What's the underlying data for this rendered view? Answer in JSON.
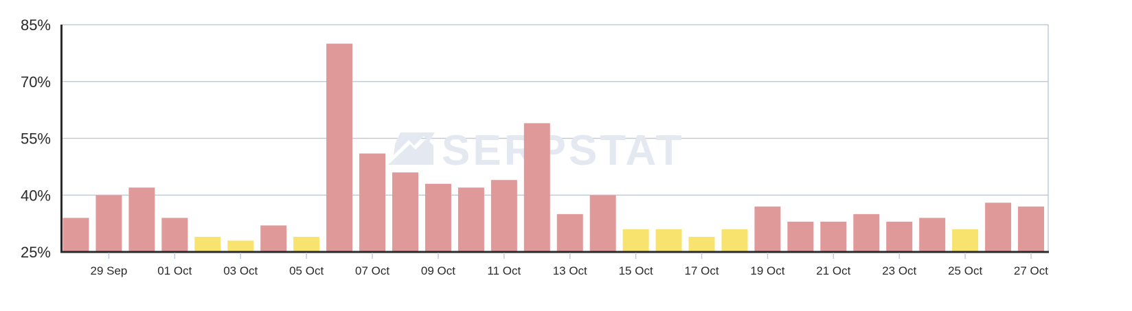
{
  "chart_data": {
    "type": "bar",
    "ylim": [
      25,
      85
    ],
    "yticks": [
      "25%",
      "40%",
      "55%",
      "70%",
      "85%"
    ],
    "ytick_values": [
      25,
      40,
      55,
      70,
      85
    ],
    "dates": [
      "28 Sep",
      "29 Sep",
      "30 Sep",
      "01 Oct",
      "02 Oct",
      "03 Oct",
      "04 Oct",
      "05 Oct",
      "06 Oct",
      "07 Oct",
      "08 Oct",
      "09 Oct",
      "10 Oct",
      "11 Oct",
      "12 Oct",
      "13 Oct",
      "14 Oct",
      "15 Oct",
      "16 Oct",
      "17 Oct",
      "18 Oct",
      "19 Oct",
      "20 Oct",
      "21 Oct",
      "22 Oct",
      "23 Oct",
      "24 Oct",
      "25 Oct",
      "26 Oct",
      "27 Oct"
    ],
    "values": [
      34,
      40,
      42,
      34,
      29,
      28,
      32,
      29,
      80,
      51,
      46,
      43,
      42,
      44,
      59,
      35,
      40,
      31,
      31,
      29,
      31,
      37,
      33,
      33,
      35,
      33,
      34,
      31,
      38,
      37
    ],
    "bar_colors": [
      "red",
      "red",
      "red",
      "red",
      "yellow",
      "yellow",
      "red",
      "yellow",
      "red",
      "red",
      "red",
      "red",
      "red",
      "red",
      "red",
      "red",
      "red",
      "yellow",
      "yellow",
      "yellow",
      "yellow",
      "red",
      "red",
      "red",
      "red",
      "red",
      "red",
      "yellow",
      "red",
      "red"
    ],
    "xtick_labels": [
      "29 Sep",
      "01 Oct",
      "03 Oct",
      "05 Oct",
      "07 Oct",
      "09 Oct",
      "11 Oct",
      "13 Oct",
      "15 Oct",
      "17 Oct",
      "19 Oct",
      "21 Oct",
      "23 Oct",
      "25 Oct",
      "27 Oct"
    ],
    "grid": true,
    "colors": {
      "red": "#e09999",
      "yellow": "#f8e36e",
      "grid": "#c3cbd8",
      "axis": "#2a2a2a",
      "watermark": "#e3e8f1"
    }
  },
  "watermark": {
    "text": "SERPSTAT",
    "icon": "serpstat-logo-icon"
  }
}
